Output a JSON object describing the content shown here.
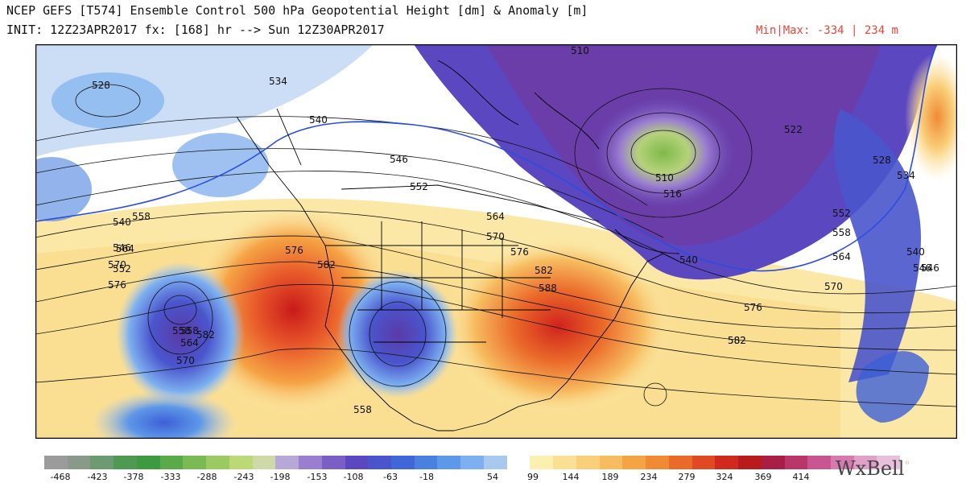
{
  "header": {
    "title_line1": "NCEP GEFS [T574] Ensemble Control 500 hPa Geopotential Height [dm] & Anomaly [m]",
    "title_line2": "INIT: 12Z23APR2017 fx: [168] hr --> Sun 12Z30APR2017",
    "minmax": "Min|Max: -334 | 234 m"
  },
  "colors": {
    "deep_positive": "#cc2020",
    "positive": "#f5a03a",
    "weak_positive": "#fbe9a6",
    "weak_negative": "#a9c8f0",
    "negative": "#3d5fd6",
    "deep_negative": "#6a3da8",
    "extreme_negative": "#8fc04a",
    "contour": "#111111",
    "blue_contour": "#2a4ee0"
  },
  "contour_labels": [
    "528",
    "534",
    "540",
    "546",
    "552",
    "558",
    "564",
    "570",
    "576",
    "582",
    "588",
    "510",
    "516",
    "522"
  ],
  "map_labels": [
    {
      "text": "528"
    },
    {
      "text": "534"
    },
    {
      "text": "540"
    },
    {
      "text": "546"
    },
    {
      "text": "552"
    },
    {
      "text": "558"
    },
    {
      "text": "564"
    },
    {
      "text": "570"
    },
    {
      "text": "576"
    },
    {
      "text": "582"
    },
    {
      "text": "540"
    },
    {
      "text": "546"
    },
    {
      "text": "552"
    },
    {
      "text": "558"
    },
    {
      "text": "558"
    },
    {
      "text": "564"
    },
    {
      "text": "570"
    },
    {
      "text": "576"
    },
    {
      "text": "582"
    },
    {
      "text": "558"
    },
    {
      "text": "564"
    },
    {
      "text": "570"
    },
    {
      "text": "576"
    },
    {
      "text": "582"
    },
    {
      "text": "588"
    },
    {
      "text": "582"
    },
    {
      "text": "510"
    },
    {
      "text": "510"
    },
    {
      "text": "516"
    },
    {
      "text": "522"
    },
    {
      "text": "528"
    },
    {
      "text": "534"
    },
    {
      "text": "540"
    },
    {
      "text": "546"
    },
    {
      "text": "552"
    },
    {
      "text": "558"
    },
    {
      "text": "564"
    },
    {
      "text": "570"
    },
    {
      "text": "576"
    },
    {
      "text": "582"
    },
    {
      "text": "540"
    },
    {
      "text": "546"
    }
  ],
  "colorbar": {
    "colors": [
      "#9b9b9b",
      "#8a9a8a",
      "#6d9a70",
      "#4e9a52",
      "#3c9a3f",
      "#5aaa4a",
      "#7aba55",
      "#9bca62",
      "#bcd978",
      "#cfd9a8",
      "#b7a8d8",
      "#9a7ed0",
      "#7b5ec6",
      "#5b47c0",
      "#4a55cc",
      "#4067d8",
      "#4a80e0",
      "#5e98e8",
      "#7db0f0",
      "#a9c8f0",
      "#ffffff",
      "#fbf0b0",
      "#fbe094",
      "#f9cf7a",
      "#f7bc60",
      "#f4a445",
      "#f08a35",
      "#ea6a2a",
      "#e04a22",
      "#d02a1e",
      "#b71b1b",
      "#a81e44",
      "#b8366a",
      "#c85590",
      "#d87ab0",
      "#e0a0c8",
      "#e8c0dc"
    ],
    "ticks": [
      "-468",
      "-423",
      "-378",
      "-333",
      "-288",
      "-243",
      "-198",
      "-153",
      "-108",
      "-63",
      "-18",
      "54",
      "99",
      "144",
      "189",
      "234",
      "279",
      "324",
      "369",
      "414"
    ]
  },
  "brand": {
    "name_left": "W",
    "name_mid": "x",
    "name_right": "Bell"
  }
}
